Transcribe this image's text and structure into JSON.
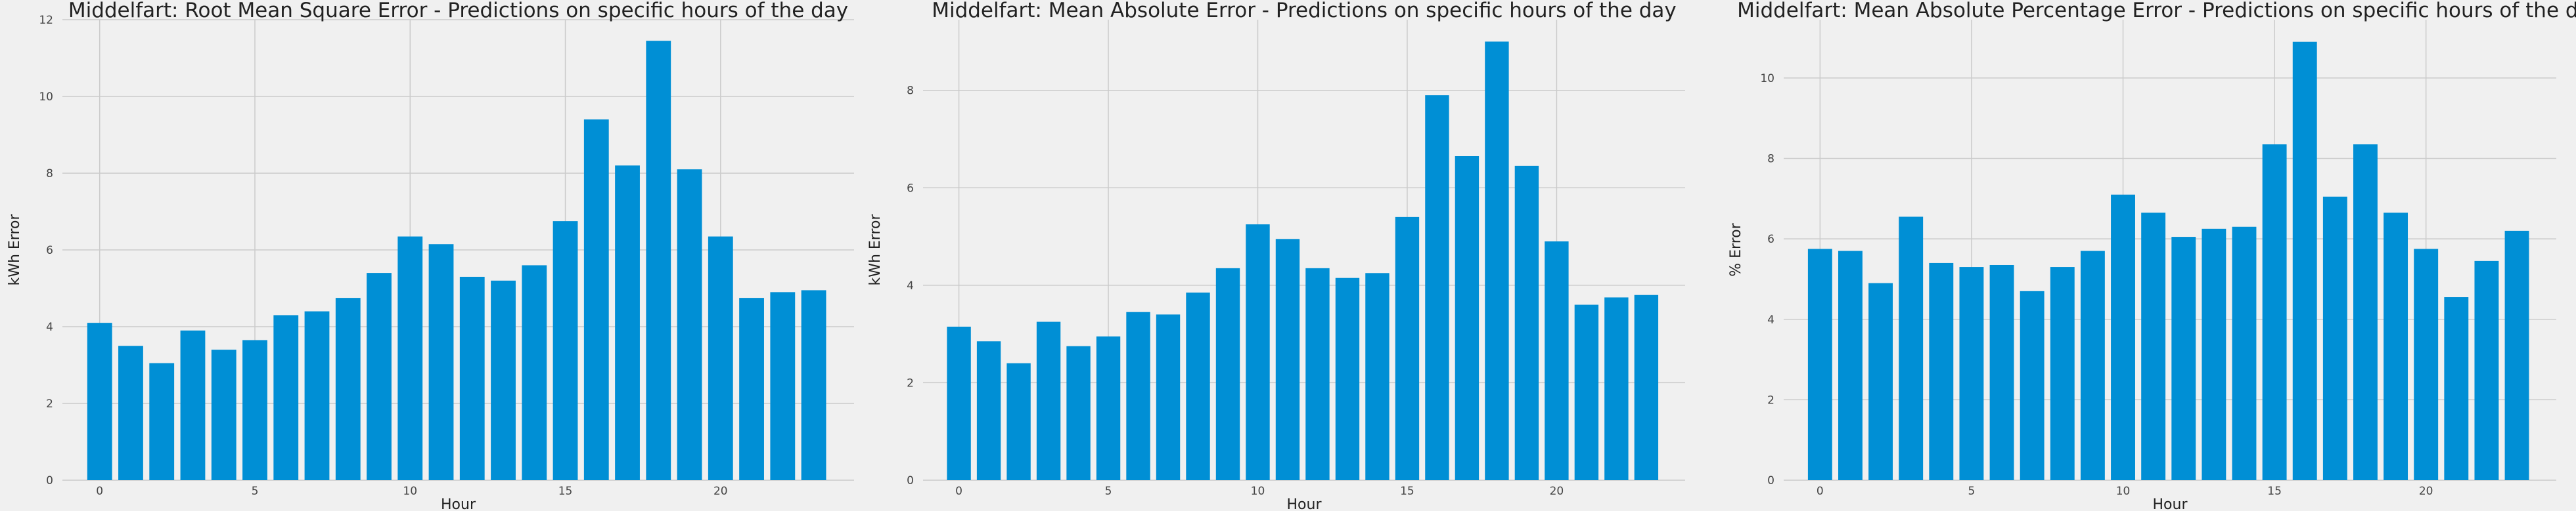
{
  "chart_data": [
    {
      "type": "bar",
      "title": "Middelfart: Root Mean Square Error - Predictions on specific hours of the day",
      "xlabel": "Hour",
      "ylabel": "kWh Error",
      "x": [
        0,
        1,
        2,
        3,
        4,
        5,
        6,
        7,
        8,
        9,
        10,
        11,
        12,
        13,
        14,
        15,
        16,
        17,
        18,
        19,
        20,
        21,
        22,
        23
      ],
      "values": [
        4.1,
        3.5,
        3.05,
        3.9,
        3.4,
        3.65,
        4.3,
        4.4,
        4.75,
        5.4,
        6.35,
        6.15,
        5.3,
        5.2,
        5.6,
        6.75,
        9.4,
        8.2,
        11.45,
        8.1,
        6.35,
        4.75,
        4.9,
        4.95
      ],
      "xlim": [
        -1.2,
        24.3
      ],
      "ylim": [
        0,
        12
      ],
      "xticks": [
        0,
        5,
        10,
        15,
        20
      ],
      "yticks": [
        0,
        2,
        4,
        6,
        8,
        10,
        12
      ],
      "grid": true,
      "color": "#008fd5"
    },
    {
      "type": "bar",
      "title": "Middelfart: Mean Absolute Error - Predictions on specific hours of the day",
      "xlabel": "Hour",
      "ylabel": "kWh Error",
      "x": [
        0,
        1,
        2,
        3,
        4,
        5,
        6,
        7,
        8,
        9,
        10,
        11,
        12,
        13,
        14,
        15,
        16,
        17,
        18,
        19,
        20,
        21,
        22,
        23
      ],
      "values": [
        3.15,
        2.85,
        2.4,
        3.25,
        2.75,
        2.95,
        3.45,
        3.4,
        3.85,
        4.35,
        5.25,
        4.95,
        4.35,
        4.15,
        4.25,
        5.4,
        7.9,
        6.65,
        9.0,
        6.45,
        4.9,
        3.6,
        3.75,
        3.8
      ],
      "xlim": [
        -1.2,
        24.3
      ],
      "ylim": [
        0,
        9.45
      ],
      "xticks": [
        0,
        5,
        10,
        15,
        20
      ],
      "yticks": [
        0,
        2,
        4,
        6,
        8
      ],
      "grid": true,
      "color": "#008fd5"
    },
    {
      "type": "bar",
      "title": "Middelfart: Mean Absolute Percentage Error - Predictions on specific hours of the day",
      "xlabel": "Hour",
      "ylabel": "% Error",
      "x": [
        0,
        1,
        2,
        3,
        4,
        5,
        6,
        7,
        8,
        9,
        10,
        11,
        12,
        13,
        14,
        15,
        16,
        17,
        18,
        19,
        20,
        21,
        22,
        23
      ],
      "values": [
        5.75,
        5.7,
        4.9,
        6.55,
        5.4,
        5.3,
        5.35,
        4.7,
        5.3,
        5.7,
        7.1,
        6.65,
        6.05,
        6.25,
        6.3,
        8.35,
        10.9,
        7.05,
        8.35,
        6.65,
        5.75,
        4.55,
        5.45,
        6.2
      ],
      "xlim": [
        -1.2,
        24.3
      ],
      "ylim": [
        0,
        11.45
      ],
      "xticks": [
        0,
        5,
        10,
        15,
        20
      ],
      "yticks": [
        0,
        2,
        4,
        6,
        8,
        10
      ],
      "grid": true,
      "color": "#008fd5"
    }
  ]
}
